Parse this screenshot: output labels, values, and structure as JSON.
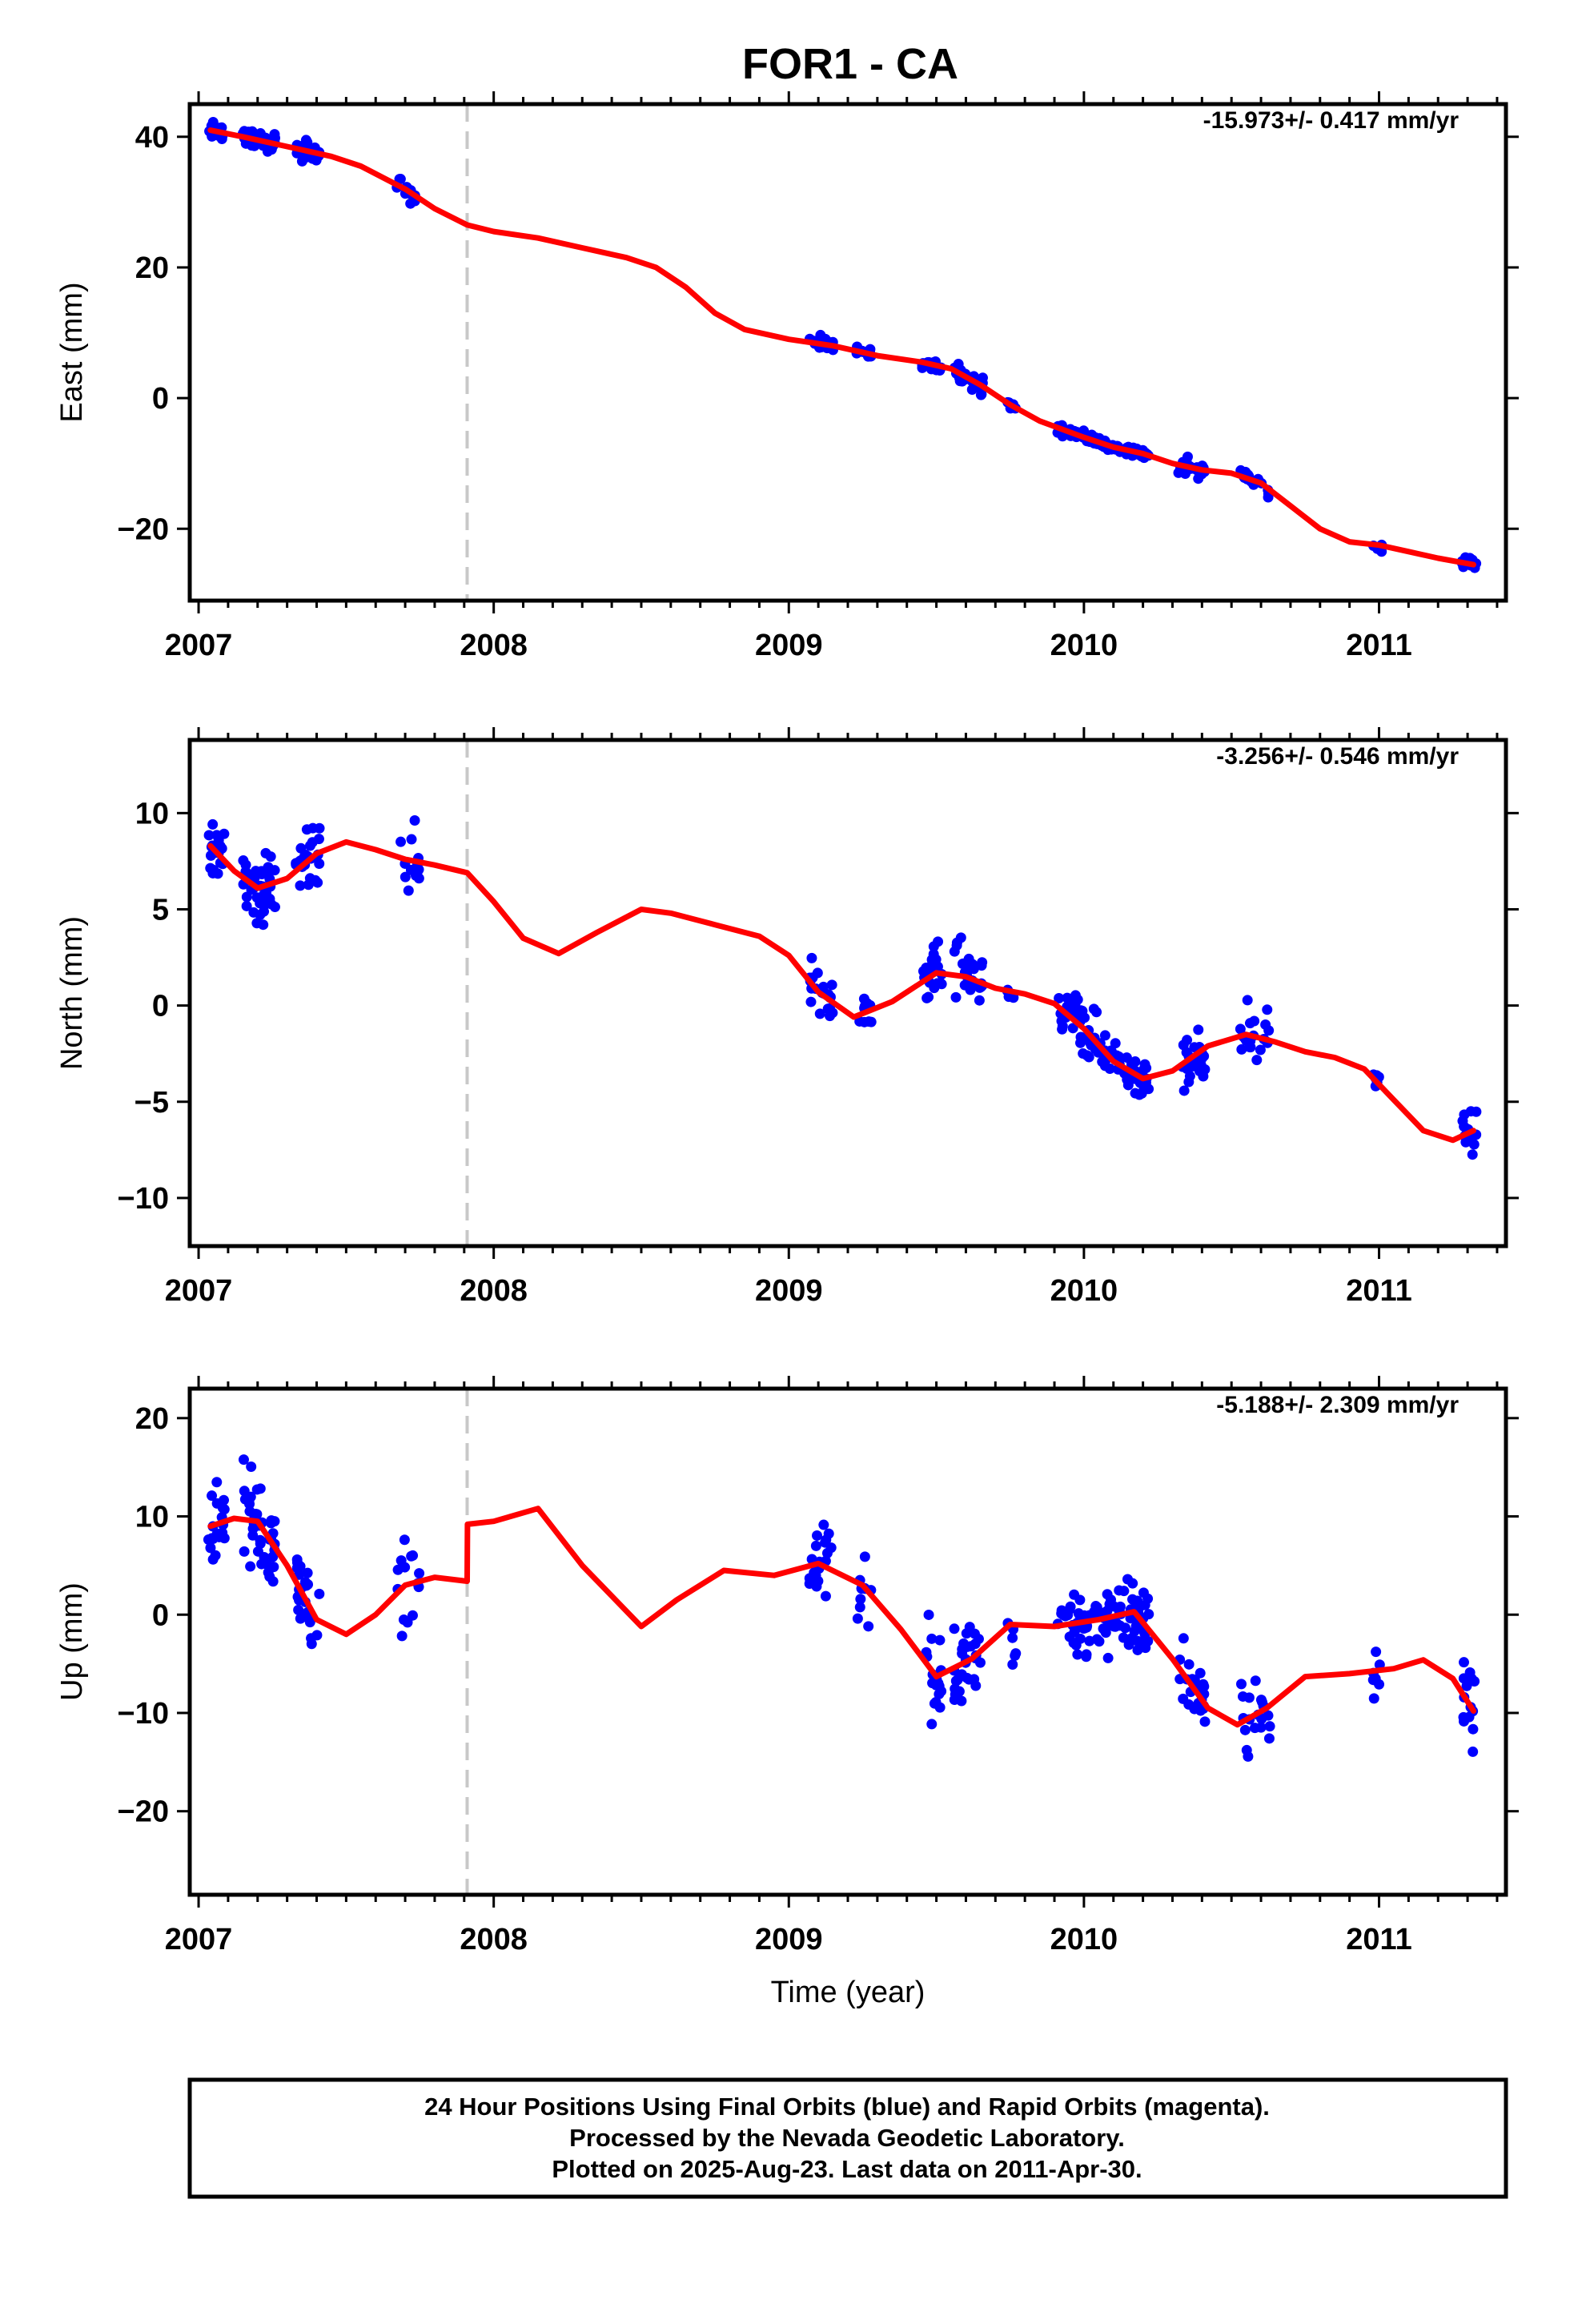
{
  "title": "FOR1 - CA",
  "caption": {
    "line1": "24 Hour Positions Using Final Orbits (blue) and Rapid Orbits (magenta).",
    "line2": "Processed by the Nevada Geodetic Laboratory.",
    "line3": "Plotted on 2025-Aug-23. Last data on 2011-Apr-30."
  },
  "colors": {
    "data_points": "#0000ff",
    "model_line": "#ff0000",
    "equipment_change_line": "#c8c8c8",
    "frame": "#000000"
  },
  "chart_data": [
    {
      "type": "scatter",
      "ylabel": "East (mm)",
      "rate_label": "-15.973+/- 0.417 mm/yr",
      "xlim": [
        2006.97,
        2011.43
      ],
      "ylim": [
        -31,
        45
      ],
      "xticks": [
        2007,
        2008,
        2009,
        2010,
        2011
      ],
      "yticks": [
        -20,
        0,
        20,
        40
      ],
      "step_marker_x": 2007.91,
      "model": {
        "x": [
          2007.04,
          2007.15,
          2007.3,
          2007.45,
          2007.55,
          2007.7,
          2007.8,
          2007.91,
          2008.0,
          2008.15,
          2008.3,
          2008.45,
          2008.55,
          2008.65,
          2008.75,
          2008.85,
          2009.0,
          2009.15,
          2009.3,
          2009.45,
          2009.55,
          2009.65,
          2009.75,
          2009.85,
          2010.0,
          2010.1,
          2010.2,
          2010.3,
          2010.4,
          2010.5,
          2010.6,
          2010.7,
          2010.8,
          2010.9,
          2011.0,
          2011.1,
          2011.2,
          2011.32
        ],
        "y": [
          41,
          40,
          38.5,
          37,
          35.5,
          32,
          29,
          26.5,
          25.5,
          24.5,
          23,
          21.5,
          20,
          17,
          13,
          10.5,
          9,
          8,
          6.5,
          5.5,
          4.5,
          2,
          -1,
          -3.5,
          -6,
          -7.5,
          -8.5,
          -10,
          -11,
          -11.5,
          -13,
          -16.5,
          -20,
          -22,
          -22.5,
          -23.5,
          -24.5,
          -25.5
        ]
      },
      "series": [
        {
          "name": "Final Orbits",
          "segments": [
            {
              "x0": 2007.03,
              "x1": 2007.09,
              "n": 28,
              "spread": 2.0
            },
            {
              "x0": 2007.15,
              "x1": 2007.26,
              "n": 40,
              "spread": 2.2
            },
            {
              "x0": 2007.33,
              "x1": 2007.41,
              "n": 30,
              "spread": 2.6
            },
            {
              "x0": 2007.67,
              "x1": 2007.75,
              "n": 12,
              "spread": 2.8
            },
            {
              "x0": 2009.07,
              "x1": 2009.15,
              "n": 20,
              "spread": 2.0
            },
            {
              "x0": 2009.23,
              "x1": 2009.28,
              "n": 12,
              "spread": 1.5
            },
            {
              "x0": 2009.45,
              "x1": 2009.52,
              "n": 16,
              "spread": 1.4
            },
            {
              "x0": 2009.56,
              "x1": 2009.66,
              "n": 30,
              "spread": 2.2
            },
            {
              "x0": 2009.74,
              "x1": 2009.77,
              "n": 6,
              "spread": 1.2
            },
            {
              "x0": 2009.91,
              "x1": 2010.22,
              "n": 90,
              "spread": 1.6
            },
            {
              "x0": 2010.32,
              "x1": 2010.41,
              "n": 24,
              "spread": 2.0
            },
            {
              "x0": 2010.53,
              "x1": 2010.63,
              "n": 20,
              "spread": 1.8
            },
            {
              "x0": 2010.98,
              "x1": 2011.01,
              "n": 7,
              "spread": 2.0
            },
            {
              "x0": 2011.28,
              "x1": 2011.33,
              "n": 14,
              "spread": 2.6
            }
          ]
        }
      ]
    },
    {
      "type": "scatter",
      "ylabel": "North (mm)",
      "rate_label": "-3.256+/- 0.546 mm/yr",
      "xlim": [
        2006.97,
        2011.43
      ],
      "ylim": [
        -12.5,
        13.8
      ],
      "xticks": [
        2007,
        2008,
        2009,
        2010,
        2011
      ],
      "yticks": [
        -10,
        -5,
        0,
        5,
        10
      ],
      "step_marker_x": 2007.91,
      "model": {
        "x": [
          2007.04,
          2007.12,
          2007.2,
          2007.3,
          2007.4,
          2007.5,
          2007.6,
          2007.7,
          2007.8,
          2007.91,
          2008.0,
          2008.1,
          2008.22,
          2008.35,
          2008.5,
          2008.6,
          2008.75,
          2008.9,
          2009.0,
          2009.1,
          2009.22,
          2009.35,
          2009.5,
          2009.6,
          2009.7,
          2009.8,
          2009.9,
          2010.0,
          2010.1,
          2010.2,
          2010.3,
          2010.42,
          2010.55,
          2010.65,
          2010.75,
          2010.85,
          2010.95,
          2011.05,
          2011.15,
          2011.25,
          2011.32
        ],
        "y": [
          8.3,
          7.0,
          6.1,
          6.6,
          7.9,
          8.5,
          8.1,
          7.6,
          7.3,
          6.9,
          5.4,
          3.5,
          2.7,
          3.8,
          5.0,
          4.8,
          4.2,
          3.6,
          2.6,
          0.7,
          -0.6,
          0.2,
          1.7,
          1.5,
          0.9,
          0.6,
          0.1,
          -1.2,
          -2.9,
          -3.8,
          -3.4,
          -2.1,
          -1.5,
          -1.9,
          -2.4,
          -2.7,
          -3.3,
          -4.9,
          -6.5,
          -7.0,
          -6.5
        ]
      },
      "series": [
        {
          "name": "Final Orbits",
          "segments": [
            {
              "x0": 2007.03,
              "x1": 2007.09,
              "n": 20,
              "spread": 2.6
            },
            {
              "x0": 2007.15,
              "x1": 2007.26,
              "n": 40,
              "spread": 3.2
            },
            {
              "x0": 2007.33,
              "x1": 2007.41,
              "n": 28,
              "spread": 2.6
            },
            {
              "x0": 2007.67,
              "x1": 2007.75,
              "n": 14,
              "spread": 3.8
            },
            {
              "x0": 2009.07,
              "x1": 2009.15,
              "n": 20,
              "spread": 2.2
            },
            {
              "x0": 2009.23,
              "x1": 2009.28,
              "n": 10,
              "spread": 2.0
            },
            {
              "x0": 2009.45,
              "x1": 2009.52,
              "n": 20,
              "spread": 2.4
            },
            {
              "x0": 2009.56,
              "x1": 2009.66,
              "n": 30,
              "spread": 2.8
            },
            {
              "x0": 2009.74,
              "x1": 2009.77,
              "n": 6,
              "spread": 2.2
            },
            {
              "x0": 2009.91,
              "x1": 2010.22,
              "n": 90,
              "spread": 2.2
            },
            {
              "x0": 2010.32,
              "x1": 2010.41,
              "n": 24,
              "spread": 2.8
            },
            {
              "x0": 2010.53,
              "x1": 2010.63,
              "n": 20,
              "spread": 2.8
            },
            {
              "x0": 2010.98,
              "x1": 2011.01,
              "n": 7,
              "spread": 1.0
            },
            {
              "x0": 2011.28,
              "x1": 2011.33,
              "n": 14,
              "spread": 1.8
            }
          ]
        }
      ]
    },
    {
      "type": "scatter",
      "ylabel": "Up (mm)",
      "rate_label": "-5.188+/- 2.309 mm/yr",
      "xlabel": "Time (year)",
      "xlim": [
        2006.97,
        2011.43
      ],
      "ylim": [
        -28.5,
        23
      ],
      "xticks": [
        2007,
        2008,
        2009,
        2010,
        2011
      ],
      "yticks": [
        -20,
        -10,
        0,
        10,
        20
      ],
      "step_marker_x": 2007.91,
      "model": {
        "x": [
          2007.04,
          2007.12,
          2007.2,
          2007.3,
          2007.4,
          2007.5,
          2007.6,
          2007.7,
          2007.8,
          2007.91,
          2007.911,
          2008.0,
          2008.15,
          2008.3,
          2008.5,
          2008.62,
          2008.78,
          2008.95,
          2009.1,
          2009.25,
          2009.38,
          2009.5,
          2009.62,
          2009.75,
          2009.9,
          2010.05,
          2010.17,
          2010.3,
          2010.42,
          2010.52,
          2010.62,
          2010.75,
          2010.9,
          2011.05,
          2011.15,
          2011.25,
          2011.32
        ],
        "y": [
          9.0,
          9.8,
          9.5,
          5.0,
          -0.5,
          -2.0,
          0.0,
          3.0,
          3.8,
          3.4,
          9.2,
          9.5,
          10.8,
          5.0,
          -1.2,
          1.5,
          4.5,
          4.0,
          5.2,
          3.0,
          -1.5,
          -6.3,
          -4.5,
          -1.0,
          -1.2,
          -0.5,
          0.3,
          -4.5,
          -9.5,
          -11.2,
          -9.5,
          -6.3,
          -6.0,
          -5.5,
          -4.6,
          -6.5,
          -9.8
        ]
      },
      "series": [
        {
          "name": "Final Orbits",
          "segments": [
            {
              "x0": 2007.03,
              "x1": 2007.09,
              "n": 20,
              "spread": 6.0
            },
            {
              "x0": 2007.15,
              "x1": 2007.26,
              "n": 40,
              "spread": 8.5
            },
            {
              "x0": 2007.33,
              "x1": 2007.41,
              "n": 28,
              "spread": 6.0
            },
            {
              "x0": 2007.67,
              "x1": 2007.75,
              "n": 14,
              "spread": 9.0
            },
            {
              "x0": 2009.07,
              "x1": 2009.15,
              "n": 20,
              "spread": 7.0
            },
            {
              "x0": 2009.23,
              "x1": 2009.28,
              "n": 10,
              "spread": 6.0
            },
            {
              "x0": 2009.45,
              "x1": 2009.52,
              "n": 20,
              "spread": 8.0
            },
            {
              "x0": 2009.56,
              "x1": 2009.66,
              "n": 30,
              "spread": 7.5
            },
            {
              "x0": 2009.74,
              "x1": 2009.77,
              "n": 6,
              "spread": 7.0
            },
            {
              "x0": 2009.91,
              "x1": 2010.22,
              "n": 90,
              "spread": 7.0
            },
            {
              "x0": 2010.32,
              "x1": 2010.41,
              "n": 24,
              "spread": 6.5
            },
            {
              "x0": 2010.53,
              "x1": 2010.63,
              "n": 20,
              "spread": 8.5
            },
            {
              "x0": 2010.98,
              "x1": 2011.01,
              "n": 7,
              "spread": 7.0
            },
            {
              "x0": 2011.28,
              "x1": 2011.33,
              "n": 14,
              "spread": 7.0
            }
          ]
        }
      ]
    }
  ]
}
